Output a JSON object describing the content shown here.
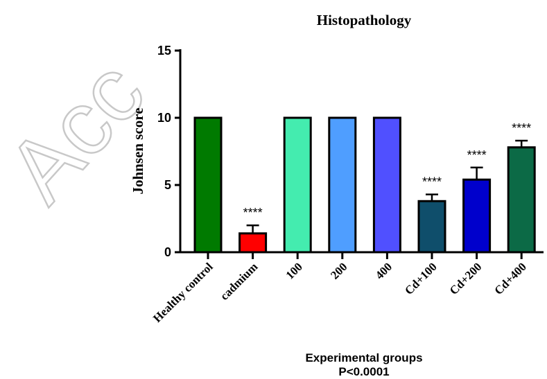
{
  "chart_data": {
    "type": "bar",
    "title": "Histopathology",
    "ylabel": "Johnsen score",
    "xlabel": "Experimental groups",
    "xlabel_line2": "P<0.0001",
    "ylim": [
      0,
      15
    ],
    "yticks": [
      0,
      5,
      10,
      15
    ],
    "categories": [
      "Healthy control",
      "cadmium",
      "100",
      "200",
      "400",
      "Cd+100",
      "Cd+200",
      "Cd+400"
    ],
    "values": [
      10,
      1.4,
      10,
      10,
      10,
      3.8,
      5.4,
      7.8
    ],
    "errors": [
      0,
      0.6,
      0,
      0,
      0,
      0.5,
      0.9,
      0.5
    ],
    "annotations": [
      "",
      "****",
      "",
      "",
      "",
      "****",
      "****",
      "****"
    ],
    "colors": [
      "#007a00",
      "#ff0000",
      "#44ecaf",
      "#4f9eff",
      "#5050ff",
      "#0f4e6b",
      "#0000cc",
      "#0c6a46"
    ],
    "grid": false,
    "legend": "none"
  },
  "watermark": "Acc"
}
